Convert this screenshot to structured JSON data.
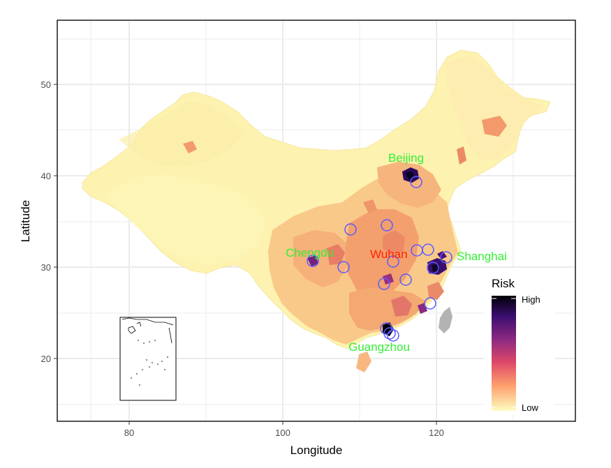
{
  "axes": {
    "x_title": "Longitude",
    "y_title": "Latitude",
    "x_ticks": [
      "80",
      "100",
      "120"
    ],
    "y_ticks": [
      "20",
      "30",
      "40",
      "50"
    ]
  },
  "cities": [
    {
      "name": "Beijing",
      "color": "#33ee33"
    },
    {
      "name": "Shanghai",
      "color": "#33ee33"
    },
    {
      "name": "Chengdu",
      "color": "#33ee33"
    },
    {
      "name": "Wuhan",
      "color": "#ff2200"
    },
    {
      "name": "Guangzhou",
      "color": "#33ee33"
    }
  ],
  "legend": {
    "title": "Risk",
    "high_label": "High",
    "low_label": "Low",
    "gradient_colors": [
      "#000004",
      "#3b0f70",
      "#8c2981",
      "#de4968",
      "#fe9f6d",
      "#fcfdbf"
    ]
  },
  "colors": {
    "panel_border": "#1a1a1a",
    "grid": "#ebebeb",
    "circle_outline": "#5a5aff",
    "base_fill": "#fdf3b0"
  }
}
